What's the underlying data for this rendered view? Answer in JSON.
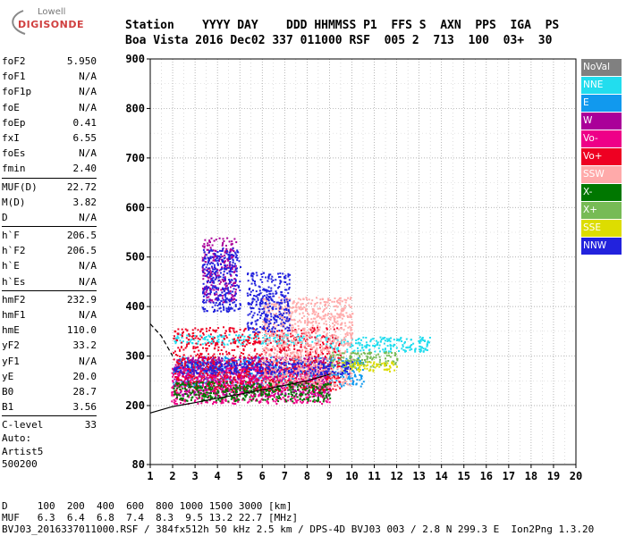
{
  "logo": {
    "line1": "Lowell",
    "line2": "DIGISONDE"
  },
  "header": {
    "labels": "Station    YYYY DAY    DDD HHMMSS P1  FFS S  AXN  PPS  IGA  PS",
    "values": "Boa Vista 2016 Dec02 337 011000 RSF  005 2  713  100  03+  30"
  },
  "params": [
    {
      "name": "foF2",
      "value": "5.950"
    },
    {
      "name": "foF1",
      "value": "N/A"
    },
    {
      "name": "foF1p",
      "value": "N/A"
    },
    {
      "name": "foE",
      "value": "N/A"
    },
    {
      "name": "foEp",
      "value": "0.41"
    },
    {
      "name": "fxI",
      "value": "6.55"
    },
    {
      "name": "foEs",
      "value": "N/A"
    },
    {
      "name": "fmin",
      "value": "2.40"
    },
    {
      "name": "MUF(D)",
      "value": "22.72",
      "div": true
    },
    {
      "name": "M(D)",
      "value": "3.82"
    },
    {
      "name": "D",
      "value": "N/A"
    },
    {
      "name": "h`F",
      "value": "206.5",
      "div": true
    },
    {
      "name": "h`F2",
      "value": "206.5"
    },
    {
      "name": "h`E",
      "value": "N/A"
    },
    {
      "name": "h`Es",
      "value": "N/A"
    },
    {
      "name": "hmF2",
      "value": "232.9",
      "div": true
    },
    {
      "name": "hmF1",
      "value": "N/A"
    },
    {
      "name": "hmE",
      "value": "110.0"
    },
    {
      "name": "yF2",
      "value": "33.2"
    },
    {
      "name": "yF1",
      "value": "N/A"
    },
    {
      "name": "yE",
      "value": "20.0"
    },
    {
      "name": "B0",
      "value": "28.7"
    },
    {
      "name": "B1",
      "value": "3.56"
    },
    {
      "name": "C-level",
      "value": "33",
      "div": true
    }
  ],
  "auto": [
    "Auto:",
    "Artist5",
    "500200"
  ],
  "footer": {
    "d_row": "D     100  200  400  600  800 1000 1500 3000 [km]",
    "muf_row": "MUF   6.3  6.4  6.8  7.4  8.3  9.5 13.2 22.7 [MHz]",
    "info": "BVJ03_2016337011000.RSF / 384fx512h 50 kHz 2.5 km / DPS-4D BVJ03 003 / 2.8 N 299.3 E  Ion2Png 1.3.20"
  },
  "legend": [
    {
      "name": "NoVal",
      "color": "#808080"
    },
    {
      "name": "NNE",
      "color": "#22ddee"
    },
    {
      "name": "E",
      "color": "#1199ee"
    },
    {
      "name": "W",
      "color": "#aa0099"
    },
    {
      "name": "Vo-",
      "color": "#ee0088"
    },
    {
      "name": "Vo+",
      "color": "#ee0022"
    },
    {
      "name": "SSW",
      "color": "#ffaaaa"
    },
    {
      "name": "X-",
      "color": "#007700"
    },
    {
      "name": "X+",
      "color": "#77bb55"
    },
    {
      "name": "SSE",
      "color": "#dddd00"
    },
    {
      "name": "NNW",
      "color": "#2222dd"
    }
  ],
  "chart_data": {
    "type": "scatter",
    "title": "",
    "xlabel": "",
    "ylabel": "",
    "x_ticks": [
      1,
      2,
      3,
      4,
      5,
      6,
      7,
      8,
      9,
      10,
      11,
      12,
      13,
      14,
      15,
      16,
      17,
      18,
      19,
      20
    ],
    "y_ticks": [
      80,
      200,
      300,
      400,
      500,
      600,
      700,
      800,
      900
    ],
    "xlim": [
      1,
      20
    ],
    "ylim": [
      80,
      900
    ],
    "y_scale": "piecewise",
    "grid": true,
    "series": [
      {
        "name": "NNE",
        "color": "#22ddee",
        "regions": [
          {
            "x": [
              2.0,
              9.0
            ],
            "y": [
              325,
              345
            ]
          },
          {
            "x": [
              9.0,
              13.5
            ],
            "y": [
              310,
              340
            ]
          }
        ]
      },
      {
        "name": "E",
        "color": "#1199ee",
        "regions": [
          {
            "x": [
              2.0,
              10.5
            ],
            "y": [
              240,
              300
            ]
          }
        ]
      },
      {
        "name": "W",
        "color": "#aa0099",
        "regions": [
          {
            "x": [
              2.0,
              9.0
            ],
            "y": [
              220,
              300
            ]
          },
          {
            "x": [
              3.3,
              4.8
            ],
            "y": [
              410,
              540
            ]
          }
        ]
      },
      {
        "name": "Vo-",
        "color": "#ee0088",
        "regions": [
          {
            "x": [
              1.9,
              9.0
            ],
            "y": [
              205,
              280
            ]
          }
        ]
      },
      {
        "name": "Vo+",
        "color": "#ee0022",
        "regions": [
          {
            "x": [
              2.0,
              9.5
            ],
            "y": [
              230,
              360
            ]
          }
        ]
      },
      {
        "name": "SSW",
        "color": "#ffaaaa",
        "regions": [
          {
            "x": [
              6.0,
              10.0
            ],
            "y": [
              240,
              420
            ]
          }
        ]
      },
      {
        "name": "X-",
        "color": "#007700",
        "regions": [
          {
            "x": [
              2.0,
              9.0
            ],
            "y": [
              210,
              250
            ]
          }
        ]
      },
      {
        "name": "X+",
        "color": "#77bb55",
        "regions": [
          {
            "x": [
              9.0,
              12.0
            ],
            "y": [
              280,
              310
            ]
          }
        ]
      },
      {
        "name": "SSE",
        "color": "#dddd00",
        "regions": [
          {
            "x": [
              9.5,
              12.0
            ],
            "y": [
              270,
              290
            ]
          }
        ]
      },
      {
        "name": "NNW",
        "color": "#2222dd",
        "regions": [
          {
            "x": [
              2.0,
              10.0
            ],
            "y": [
              265,
              290
            ]
          },
          {
            "x": [
              3.3,
              5.0
            ],
            "y": [
              390,
              520
            ]
          },
          {
            "x": [
              5.3,
              7.2
            ],
            "y": [
              350,
              470
            ]
          }
        ]
      }
    ],
    "profile_curve": {
      "lower": [
        [
          1,
          185
        ],
        [
          2,
          198
        ],
        [
          3,
          206
        ],
        [
          4,
          215
        ],
        [
          5,
          223
        ],
        [
          6,
          232
        ],
        [
          7,
          241
        ],
        [
          8,
          250
        ],
        [
          9,
          263
        ]
      ],
      "upper": [
        [
          1,
          365
        ],
        [
          1.5,
          340
        ],
        [
          2,
          300
        ]
      ]
    }
  }
}
